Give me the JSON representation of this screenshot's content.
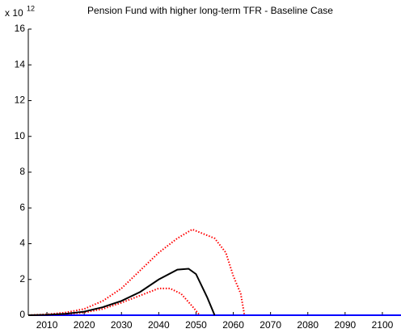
{
  "chart_data": {
    "type": "line",
    "title": "Pension Fund with higher long-term TFR - Baseline Case",
    "y_multiplier": "x 10",
    "y_exponent": "12",
    "xlim": [
      2005,
      2105
    ],
    "xticks": [
      2010,
      2020,
      2030,
      2040,
      2050,
      2060,
      2070,
      2080,
      2090,
      2100
    ],
    "ylim": [
      0,
      16
    ],
    "yticks": [
      0,
      2,
      4,
      6,
      8,
      10,
      12,
      14,
      16
    ],
    "grid": false,
    "series": [
      {
        "color": "#0000ff",
        "style": "solid",
        "x": [
          2005,
          2105
        ],
        "values": [
          0,
          0
        ]
      },
      {
        "color": "#ff0000",
        "style": "dotted",
        "x": [
          2005,
          2010,
          2015,
          2020,
          2025,
          2030,
          2035,
          2040,
          2045,
          2049,
          2055,
          2058,
          2060,
          2062,
          2063
        ],
        "values": [
          0,
          0.05,
          0.15,
          0.35,
          0.8,
          1.5,
          2.5,
          3.5,
          4.3,
          4.8,
          4.3,
          3.5,
          2.2,
          1.2,
          0
        ]
      },
      {
        "color": "#ff0000",
        "style": "dotted",
        "x": [
          2005,
          2010,
          2015,
          2020,
          2025,
          2030,
          2035,
          2040,
          2043,
          2046,
          2049,
          2051
        ],
        "values": [
          0,
          0.02,
          0.06,
          0.15,
          0.35,
          0.7,
          1.1,
          1.5,
          1.5,
          1.2,
          0.5,
          0
        ]
      },
      {
        "color": "#000000",
        "style": "solid",
        "x": [
          2005,
          2010,
          2015,
          2020,
          2025,
          2030,
          2035,
          2040,
          2045,
          2048,
          2050,
          2053,
          2055
        ],
        "values": [
          0,
          0.02,
          0.08,
          0.2,
          0.45,
          0.8,
          1.3,
          2.0,
          2.55,
          2.6,
          2.3,
          1.0,
          0
        ]
      }
    ]
  }
}
